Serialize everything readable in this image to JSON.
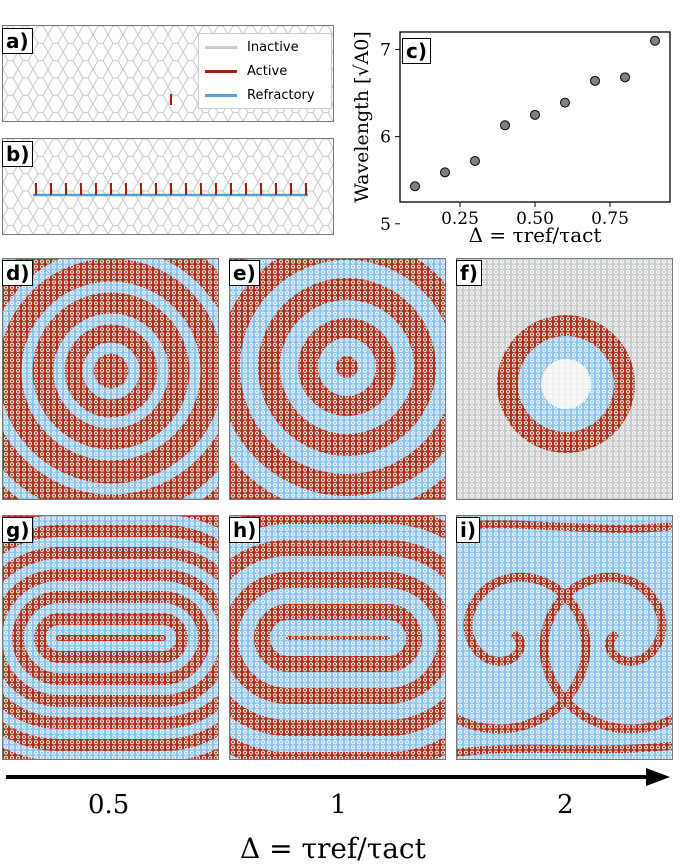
{
  "panels": {
    "a": {
      "label": "a)"
    },
    "b": {
      "label": "b)"
    },
    "c": {
      "label": "c)"
    },
    "d": {
      "label": "d)"
    },
    "e": {
      "label": "e)"
    },
    "f": {
      "label": "f)"
    },
    "g": {
      "label": "g)"
    },
    "h": {
      "label": "h)"
    },
    "i": {
      "label": "i)"
    }
  },
  "legend": {
    "items": [
      {
        "label": "Inactive",
        "color": "#c8cccc"
      },
      {
        "label": "Active",
        "color": "#a02010"
      },
      {
        "label": "Refractory",
        "color": "#4fa3e3"
      }
    ]
  },
  "colors": {
    "inactive": "#c8cccc",
    "active": "#a8341f",
    "refractory": "#8ec3ec"
  },
  "chart_data": {
    "type": "scatter",
    "xlabel": "Δ = τref/τact",
    "ylabel": "Wavelength [√A0]",
    "xticks": [
      "0.25",
      "0.50",
      "0.75"
    ],
    "yticks": [
      "5",
      "6",
      "7"
    ],
    "x": [
      0.1,
      0.2,
      0.3,
      0.4,
      0.5,
      0.6,
      0.7,
      0.8,
      0.9
    ],
    "y": [
      5.43,
      5.59,
      5.72,
      6.13,
      6.25,
      6.39,
      6.64,
      6.68,
      7.1
    ],
    "xlim": [
      0.05,
      0.95
    ],
    "ylim": [
      5.25,
      7.2
    ],
    "grid": false
  },
  "bottom_axis": {
    "ticks": [
      "0.5",
      "1",
      "2"
    ],
    "label": "Δ = τref/τact"
  }
}
